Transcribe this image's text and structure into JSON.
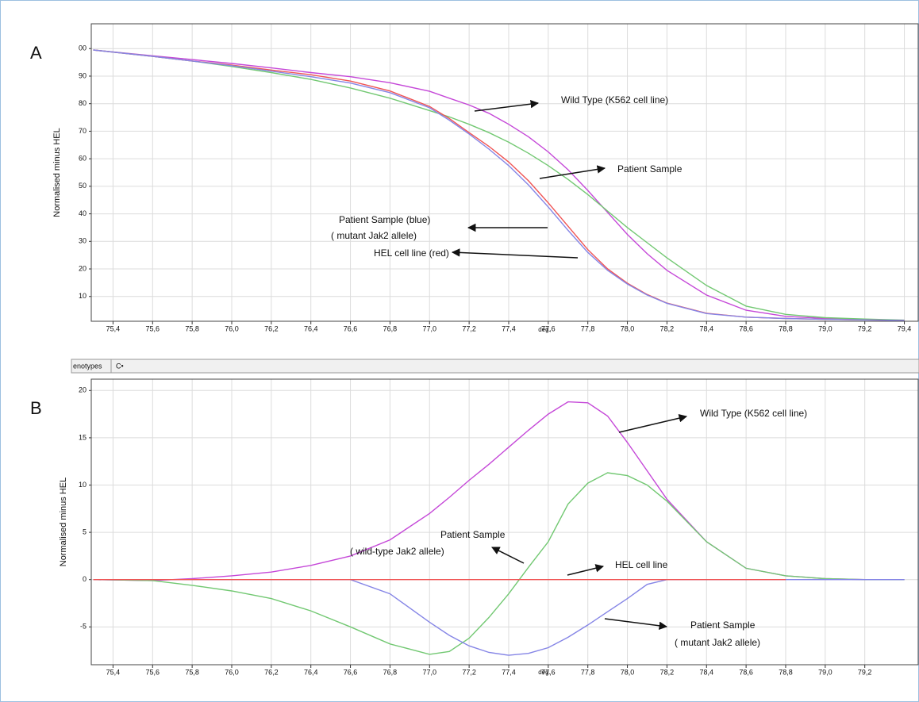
{
  "chart_data": [
    {
      "type": "line",
      "panel_label": "A",
      "y_label": "Normalised minus HEL",
      "x_label": "deg.",
      "x": [
        75.3,
        75.6,
        75.8,
        76.0,
        76.2,
        76.4,
        76.6,
        76.8,
        77.0,
        77.1,
        77.2,
        77.3,
        77.4,
        77.5,
        77.6,
        77.7,
        77.8,
        77.9,
        78.0,
        78.1,
        78.2,
        78.4,
        78.6,
        78.8,
        79.0,
        79.2,
        79.4
      ],
      "series": [
        {
          "color": "#c548d8",
          "values": [
            99.5,
            97.4,
            96,
            94.6,
            93,
            91.3,
            89.8,
            87.6,
            84.5,
            82,
            79.5,
            76.5,
            72.5,
            68,
            62.5,
            56,
            48.5,
            40.5,
            32.5,
            25.5,
            19.5,
            10.5,
            5,
            2.8,
            2,
            1.6,
            1.3
          ]
        },
        {
          "color": "#72c872",
          "values": [
            99.5,
            97.2,
            95.5,
            93.5,
            91.3,
            88.8,
            85.7,
            82,
            77.5,
            75.2,
            72.5,
            69.5,
            66,
            62,
            57.5,
            52.5,
            47,
            41,
            35,
            29.5,
            24,
            14,
            6.5,
            3.5,
            2.3,
            1.8,
            1.4
          ]
        },
        {
          "color": "#f05454",
          "values": [
            99.5,
            97.2,
            95.5,
            94,
            92.2,
            90.5,
            88.2,
            84.6,
            79,
            74.6,
            69.5,
            64.5,
            58.8,
            52,
            44,
            35.5,
            27,
            20,
            14.8,
            10.7,
            7.6,
            3.9,
            2.5,
            2,
            1.7,
            1.5,
            1.3
          ]
        },
        {
          "color": "#8585e6",
          "values": [
            99.5,
            97.2,
            95.5,
            93.8,
            91.8,
            89.8,
            87.5,
            84,
            78.5,
            74,
            69,
            63.5,
            57.5,
            50.5,
            42.5,
            34,
            26,
            19.5,
            14.5,
            10.5,
            7.5,
            3.8,
            2.5,
            2,
            1.7,
            1.5,
            1.3
          ]
        }
      ],
      "xlim": [
        75.29,
        79.47
      ],
      "xticks": [
        {
          "value": 75.4,
          "label": "75,4"
        },
        {
          "value": 75.6,
          "label": "75,6"
        },
        {
          "value": 75.8,
          "label": "75,8"
        },
        {
          "value": 76.0,
          "label": "76,0"
        },
        {
          "value": 76.2,
          "label": "76,2"
        },
        {
          "value": 76.4,
          "label": "76,4"
        },
        {
          "value": 76.6,
          "label": "76,6"
        },
        {
          "value": 76.8,
          "label": "76,8"
        },
        {
          "value": 77.0,
          "label": "77,0"
        },
        {
          "value": 77.2,
          "label": "77,2"
        },
        {
          "value": 77.4,
          "label": "77,4"
        },
        {
          "value": 77.6,
          "label": "77,6"
        },
        {
          "value": 77.8,
          "label": "77,8"
        },
        {
          "value": 78.0,
          "label": "78,0"
        },
        {
          "value": 78.2,
          "label": "78,2"
        },
        {
          "value": 78.4,
          "label": "78,4"
        },
        {
          "value": 78.6,
          "label": "78,6"
        },
        {
          "value": 78.8,
          "label": "78,8"
        },
        {
          "value": 79.0,
          "label": "79,0"
        },
        {
          "value": 79.2,
          "label": "79,2"
        },
        {
          "value": 79.4,
          "label": "79,4"
        }
      ],
      "ylim": [
        1,
        109
      ],
      "yticks": [
        10,
        20,
        30,
        40,
        50,
        60,
        70,
        80,
        90,
        {
          "value": 100,
          "label": "00"
        }
      ],
      "grid": true,
      "annotations": [
        [
          "Wild Type (K562 cell line)"
        ],
        [
          "Patient Sample"
        ],
        [
          "Patient Sample (blue)",
          "( mutant Jak2 allele)"
        ],
        [
          "HEL cell line (red)"
        ]
      ]
    },
    {
      "type": "line",
      "panel_label": "B",
      "y_label": "Normalised minus HEL",
      "x_label": "deg.",
      "x": [
        75.3,
        75.6,
        75.8,
        76.0,
        76.2,
        76.4,
        76.6,
        76.8,
        77.0,
        77.1,
        77.2,
        77.3,
        77.4,
        77.5,
        77.6,
        77.7,
        77.8,
        77.9,
        78.0,
        78.1,
        78.2,
        78.4,
        78.6,
        78.8,
        79.0,
        79.2,
        79.4
      ],
      "series": [
        {
          "color": "#c548d8",
          "values": [
            0,
            -0.1,
            0.1,
            0.4,
            0.8,
            1.5,
            2.5,
            4.2,
            7,
            8.7,
            10.5,
            12.2,
            14,
            15.8,
            17.5,
            18.8,
            18.7,
            17.3,
            14.5,
            11.5,
            8.5,
            4,
            1.2,
            0.4,
            0.1,
            0,
            0
          ]
        },
        {
          "color": "#72c872",
          "values": [
            0,
            -0.1,
            -0.6,
            -1.2,
            -2,
            -3.3,
            -5,
            -6.8,
            -7.9,
            -7.6,
            -6.2,
            -4,
            -1.5,
            1.3,
            4,
            8,
            10.2,
            11.3,
            11,
            10,
            8.3,
            4,
            1.2,
            0.4,
            0.1,
            0,
            0
          ]
        },
        {
          "color": "#8585e6",
          "values": [
            0,
            0,
            0,
            0,
            0,
            0,
            0,
            -1.5,
            -4.5,
            -5.9,
            -7,
            -7.7,
            -8,
            -7.8,
            -7.2,
            -6.1,
            -4.8,
            -3.4,
            -2,
            -0.5,
            0,
            0,
            0,
            0,
            0,
            0,
            0
          ]
        },
        {
          "color": "#f05454",
          "values": [
            0,
            0,
            0,
            0,
            0,
            0,
            0,
            0,
            0,
            0,
            0,
            0,
            0,
            0,
            0,
            0,
            0,
            0,
            0,
            0,
            0,
            0,
            0,
            0,
            null,
            null,
            null
          ]
        }
      ],
      "xlim": [
        75.29,
        79.47
      ],
      "xticks": [
        {
          "value": 75.4,
          "label": "75,4"
        },
        {
          "value": 75.6,
          "label": "75,6"
        },
        {
          "value": 75.8,
          "label": "75,8"
        },
        {
          "value": 76.0,
          "label": "76,0"
        },
        {
          "value": 76.2,
          "label": "76,2"
        },
        {
          "value": 76.4,
          "label": "76,4"
        },
        {
          "value": 76.6,
          "label": "76,6"
        },
        {
          "value": 76.8,
          "label": "76,8"
        },
        {
          "value": 77.0,
          "label": "77,0"
        },
        {
          "value": 77.2,
          "label": "77,2"
        },
        {
          "value": 77.4,
          "label": "77,4"
        },
        {
          "value": 77.6,
          "label": "77,6"
        },
        {
          "value": 77.8,
          "label": "77,8"
        },
        {
          "value": 78.0,
          "label": "78,0"
        },
        {
          "value": 78.2,
          "label": "78,2"
        },
        {
          "value": 78.4,
          "label": "78,4"
        },
        {
          "value": 78.6,
          "label": "78,6"
        },
        {
          "value": 78.8,
          "label": "78,8"
        },
        {
          "value": 79.0,
          "label": "79,0"
        },
        {
          "value": 79.2,
          "label": "79,2"
        }
      ],
      "ylim": [
        -9,
        21.2
      ],
      "yticks": [
        -5,
        0,
        5,
        10,
        15,
        20
      ],
      "grid": true,
      "annotations": [
        [
          "Wild Type (K562 cell line)"
        ],
        [
          "Patient Sample",
          "( wild-type Jak2 allele)"
        ],
        [
          "HEL cell line"
        ],
        [
          "Patient Sample",
          "( mutant Jak2 allele)"
        ]
      ]
    }
  ],
  "tabs": [
    "enotypes",
    "C•"
  ]
}
